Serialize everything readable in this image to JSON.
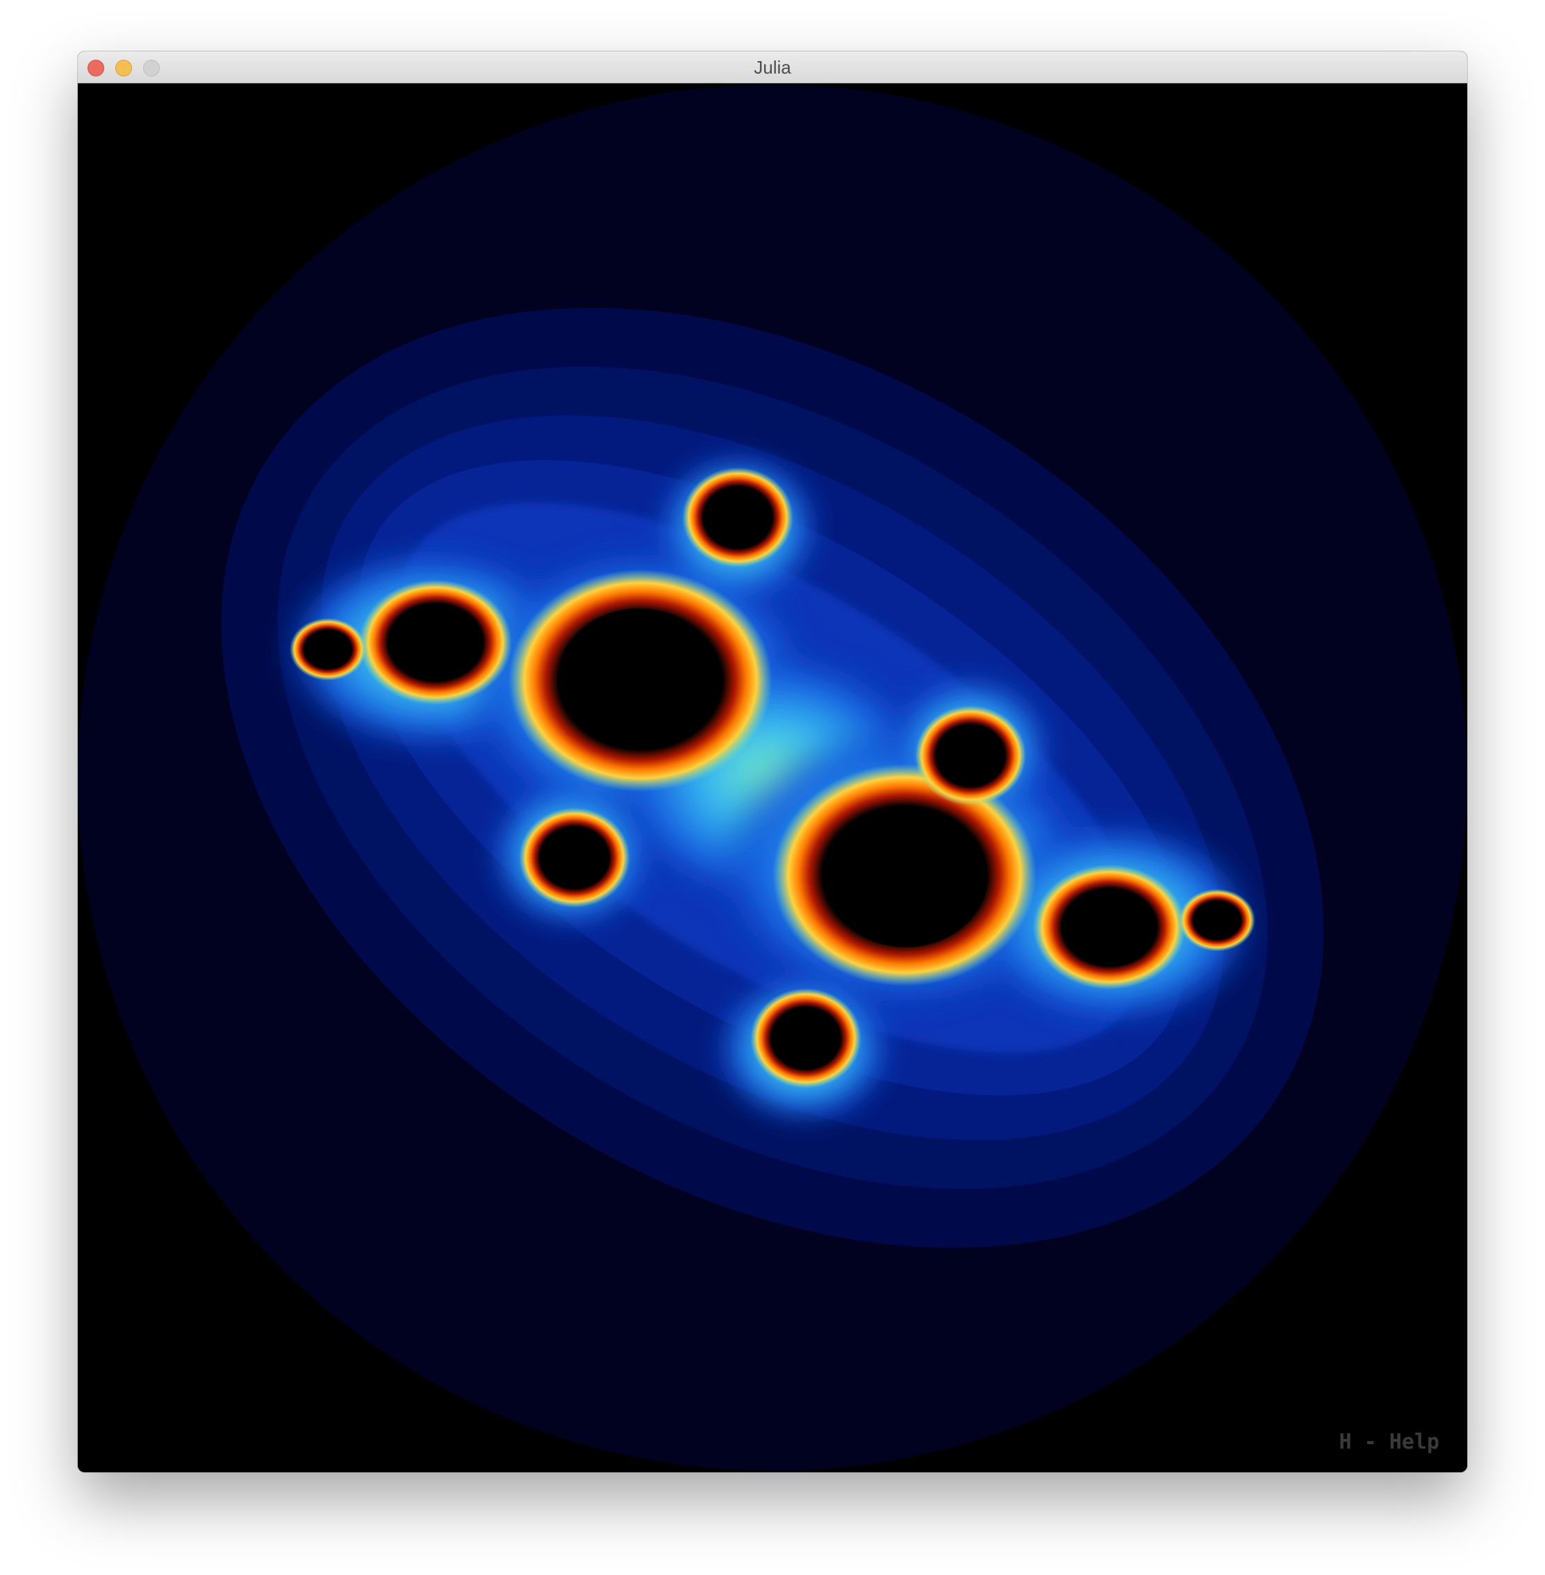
{
  "window": {
    "title": "Julia"
  },
  "canvas": {
    "help_hint": "H - Help"
  },
  "colors": {
    "background": "#000000",
    "outer_band": "#00021f",
    "mid_band": "#000a4d",
    "inner_band": "#0a2ea6",
    "glow": "#63e3b4",
    "edge_orange": "#ff6a00",
    "set_interior": "#000000",
    "help_text": "#3a3a3a"
  }
}
